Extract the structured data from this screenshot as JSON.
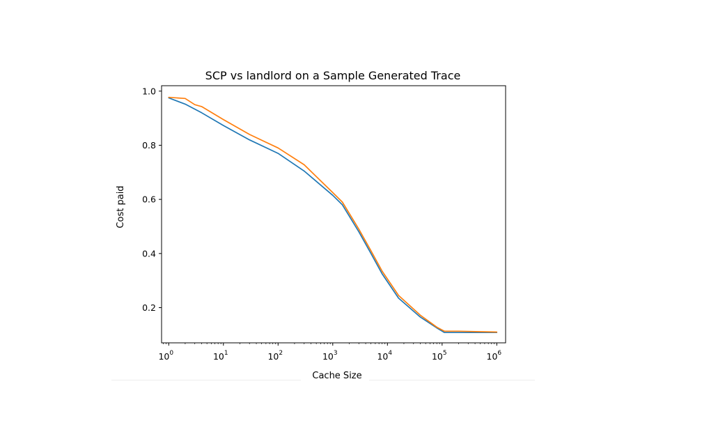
{
  "chart_data": {
    "type": "line",
    "title": "SCP vs landlord on a Sample Generated Trace",
    "xlabel": "Cache Size",
    "ylabel": "Cost paid",
    "xscale": "log",
    "xlim": [
      0.74,
      1450000
    ],
    "ylim": [
      0.07,
      1.02
    ],
    "grid": false,
    "x_ticks": [
      {
        "base": "10",
        "exp": "0",
        "value": 1
      },
      {
        "base": "10",
        "exp": "1",
        "value": 10
      },
      {
        "base": "10",
        "exp": "2",
        "value": 100
      },
      {
        "base": "10",
        "exp": "3",
        "value": 1000
      },
      {
        "base": "10",
        "exp": "4",
        "value": 10000
      },
      {
        "base": "10",
        "exp": "5",
        "value": 100000
      },
      {
        "base": "10",
        "exp": "6",
        "value": 1000000
      }
    ],
    "y_ticks": [
      {
        "label": "0.2",
        "value": 0.2
      },
      {
        "label": "0.4",
        "value": 0.4
      },
      {
        "label": "0.6",
        "value": 0.6
      },
      {
        "label": "0.8",
        "value": 0.8
      },
      {
        "label": "1.0",
        "value": 1.0
      }
    ],
    "series": [
      {
        "color": "#1f77b4",
        "x": [
          1,
          2,
          4,
          10,
          30,
          100,
          300,
          1000,
          1500,
          3000,
          5000,
          8000,
          16000,
          40000,
          80000,
          110000,
          200000,
          1000000
        ],
        "y": [
          0.975,
          0.952,
          0.92,
          0.873,
          0.82,
          0.77,
          0.705,
          0.615,
          0.58,
          0.48,
          0.4,
          0.325,
          0.235,
          0.165,
          0.125,
          0.108,
          0.108,
          0.108
        ]
      },
      {
        "color": "#ff7f0e",
        "x": [
          1,
          2,
          3,
          4,
          10,
          30,
          100,
          300,
          1000,
          1500,
          3000,
          5000,
          8000,
          16000,
          40000,
          80000,
          110000,
          200000,
          1000000
        ],
        "y": [
          0.977,
          0.973,
          0.95,
          0.943,
          0.895,
          0.84,
          0.79,
          0.728,
          0.625,
          0.59,
          0.49,
          0.41,
          0.335,
          0.245,
          0.172,
          0.128,
          0.113,
          0.113,
          0.11
        ]
      }
    ]
  }
}
